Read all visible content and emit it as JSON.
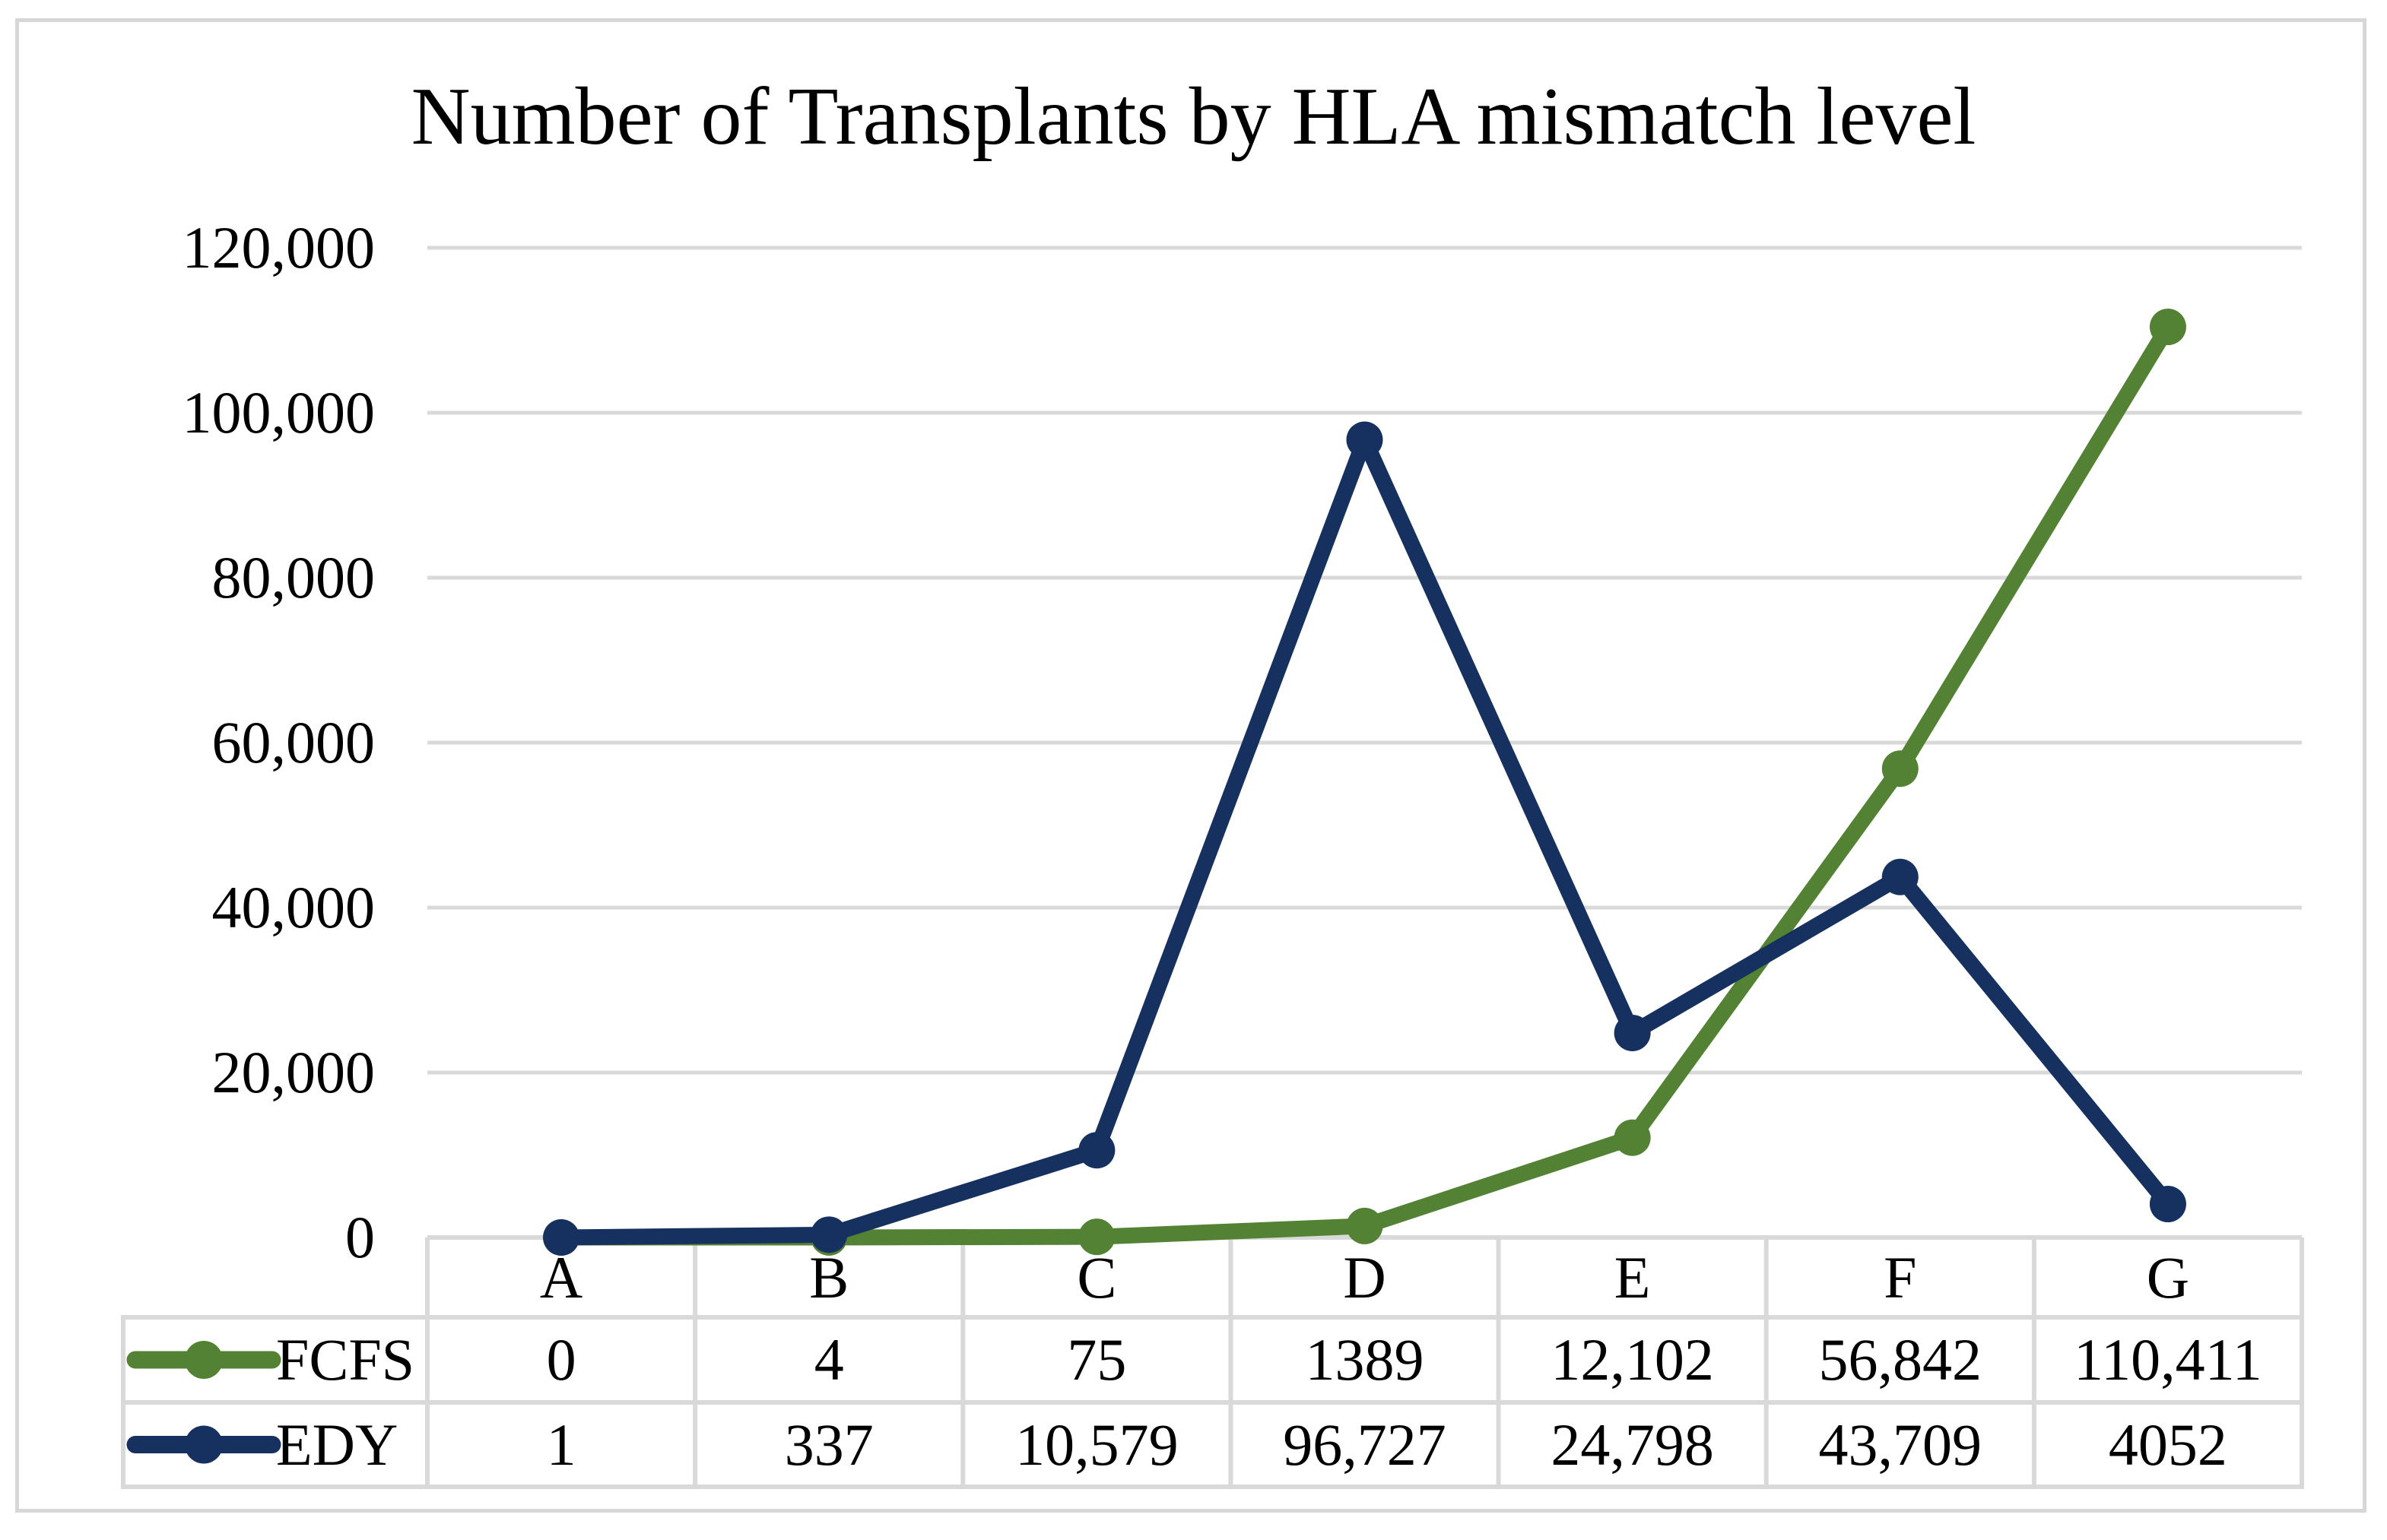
{
  "chart_data": {
    "type": "line",
    "title": "Number of Transplants by HLA mismatch level",
    "categories": [
      "A",
      "B",
      "C",
      "D",
      "E",
      "F",
      "G"
    ],
    "series": [
      {
        "name": "FCFS",
        "color": "#548235",
        "marker": "circle",
        "values": [
          0,
          4,
          75,
          1389,
          12102,
          56842,
          110411
        ],
        "display_values": [
          "0",
          "4",
          "75",
          "1389",
          "12,102",
          "56,842",
          "110,411"
        ]
      },
      {
        "name": "EDY",
        "color": "#16315F",
        "marker": "circle",
        "values": [
          1,
          337,
          10579,
          96727,
          24798,
          43709,
          4052
        ],
        "display_values": [
          "1",
          "337",
          "10,579",
          "96,727",
          "24,798",
          "43,709",
          "4052"
        ]
      }
    ],
    "xlabel": "",
    "ylabel": "",
    "ylim": [
      0,
      120000
    ],
    "ytick_step": 20000,
    "ytick_labels": [
      "0",
      "20,000",
      "40,000",
      "60,000",
      "80,000",
      "100,000",
      "120,000"
    ],
    "grid": true,
    "legend_position": "data-table-left",
    "data_table_shown": true
  },
  "colors": {
    "background": "#FFFFFF",
    "gridline": "#D9D9D9",
    "table_border": "#D9D9D9",
    "frame_border": "#D7D7D7",
    "text": "#000000"
  }
}
